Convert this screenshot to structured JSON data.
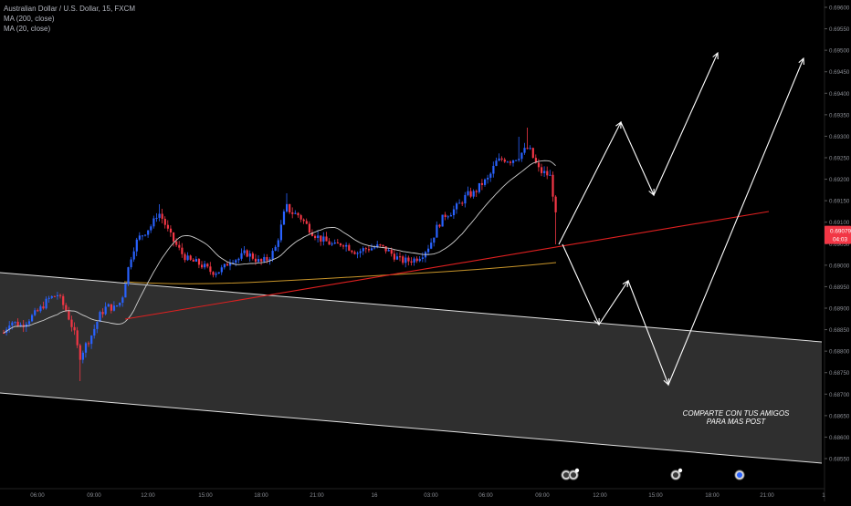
{
  "legend": {
    "symbol": "Australian Dollar / U.S. Dollar, 15, FXCM",
    "ma1": "MA (200, close)",
    "ma2": "MA (20, close)"
  },
  "chart_data": {
    "type": "candlestick",
    "y_ticks": [
      "0.69600",
      "0.69550",
      "0.69500",
      "0.69450",
      "0.69400",
      "0.69350",
      "0.69300",
      "0.69250",
      "0.69200",
      "0.69150",
      "0.69100",
      "0.69050",
      "0.69000",
      "0.68950",
      "0.68900",
      "0.68850",
      "0.68800",
      "0.68750",
      "0.68700",
      "0.68650",
      "0.68600",
      "0.68550"
    ],
    "ylim": [
      0.68535,
      0.69625
    ],
    "x_ticks": [
      "06:00",
      "09:00",
      "12:00",
      "15:00",
      "18:00",
      "21:00",
      "16",
      "03:00",
      "06:00",
      "09:00",
      "12:00",
      "15:00",
      "18:00",
      "21:00",
      "1"
    ],
    "current_price": "0.69079",
    "countdown": "04:03",
    "annotation_line1": "COMPARTE CON TUS AMIGOS",
    "annotation_line2": "PARA MAS POST",
    "colors": {
      "up": "#2962ff",
      "down": "#f23645",
      "ma20": "#cfcfcf",
      "ma200": "#c8952a",
      "trend": "#e02020",
      "channel_fill": "#555555",
      "background": "#000000"
    }
  }
}
